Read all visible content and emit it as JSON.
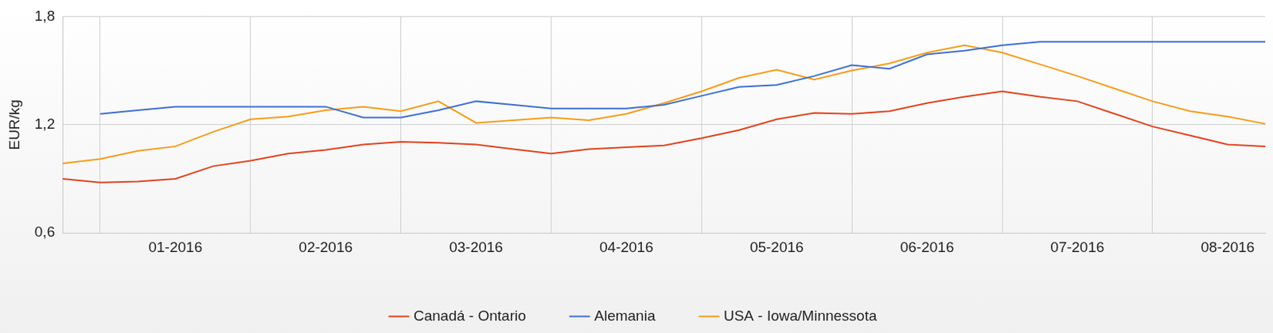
{
  "chart_data": {
    "type": "line",
    "y_label": "EUR/kg",
    "categories": [
      null,
      null,
      null,
      "01-2016",
      null,
      null,
      null,
      "02-2016",
      null,
      null,
      null,
      "03-2016",
      null,
      null,
      null,
      "04-2016",
      null,
      null,
      null,
      "05-2016",
      null,
      null,
      null,
      "06-2016",
      null,
      null,
      null,
      "07-2016",
      null,
      null,
      null,
      "08-2016",
      null
    ],
    "series": [
      {
        "name": "Canadá - Ontario",
        "color": "#e0431f",
        "values": [
          0.9,
          0.88,
          0.885,
          0.9,
          0.97,
          1.0,
          1.04,
          1.06,
          1.09,
          1.105,
          1.1,
          1.09,
          1.065,
          1.04,
          1.065,
          1.075,
          1.085,
          1.125,
          1.17,
          1.23,
          1.265,
          1.26,
          1.275,
          1.32,
          1.355,
          1.385,
          1.355,
          1.33,
          1.26,
          1.19,
          1.14,
          1.09,
          1.08
        ]
      },
      {
        "name": "Alemania",
        "color": "#3f6fd1",
        "values": [
          null,
          1.26,
          1.28,
          1.3,
          1.3,
          1.3,
          1.3,
          1.3,
          1.24,
          1.24,
          1.28,
          1.33,
          1.31,
          1.29,
          1.29,
          1.29,
          1.31,
          1.36,
          1.41,
          1.42,
          1.47,
          1.53,
          1.51,
          1.59,
          1.61,
          1.64,
          1.66,
          1.66,
          1.66,
          1.66,
          1.66,
          1.66,
          1.66
        ]
      },
      {
        "name": "USA - Iowa/Minnessota",
        "color": "#f59c1a",
        "values": [
          0.985,
          1.01,
          1.055,
          1.08,
          1.16,
          1.23,
          1.245,
          1.28,
          1.3,
          1.275,
          1.33,
          1.21,
          1.225,
          1.24,
          1.225,
          1.26,
          1.32,
          1.385,
          1.46,
          1.505,
          1.45,
          1.5,
          1.54,
          1.6,
          1.64,
          1.6,
          1.535,
          1.47,
          1.4,
          1.33,
          1.275,
          1.245,
          1.205
        ]
      }
    ],
    "ylim": [
      0.6,
      1.8
    ],
    "yticks": [
      {
        "value": 0.6,
        "label": "0,6"
      },
      {
        "value": 1.2,
        "label": "1,2"
      },
      {
        "value": 1.8,
        "label": "1,8"
      }
    ],
    "grid": true,
    "legend": "bottom"
  }
}
